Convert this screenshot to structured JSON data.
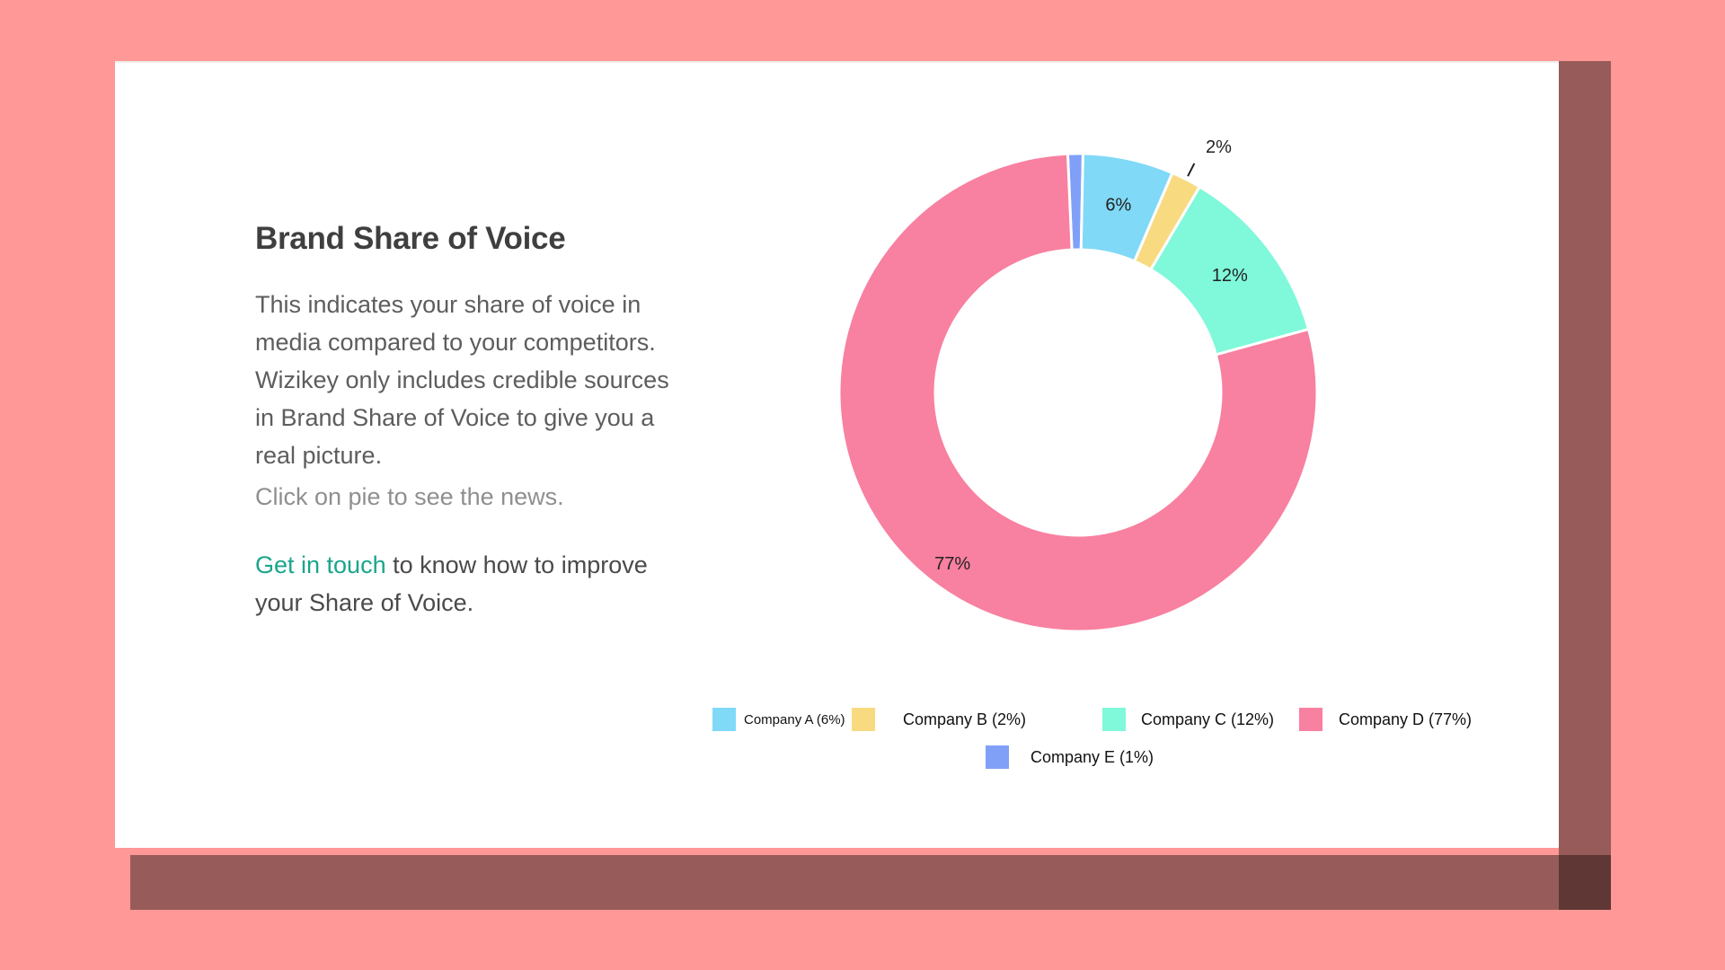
{
  "panel": {
    "title": "Brand Share of Voice",
    "description": "This indicates your share of voice in media compared to your competitors. Wizikey only includes credible sources in Brand Share of Voice to give you a real picture.",
    "hint": "Click on pie to see the news.",
    "cta_link": "Get in touch",
    "cta_text": " to know how to improve your Share of Voice."
  },
  "chart_data": {
    "type": "pie",
    "donut": true,
    "categories": [
      "Company A",
      "Company B",
      "Company C",
      "Company D",
      "Company E"
    ],
    "values": [
      6,
      2,
      12,
      77,
      1
    ],
    "data_labels": [
      "6%",
      "2%",
      "12%",
      "77%",
      ""
    ],
    "colors": [
      "#80d9f7",
      "#f8da80",
      "#80f8da",
      "#f880a0",
      "#80a0f8"
    ],
    "legend": [
      "Company A (6%)",
      "Company B (2%)",
      "Company C (12%)",
      "Company D (77%)",
      "Company E (1%)"
    ],
    "legend_position": "bottom",
    "title": ""
  }
}
